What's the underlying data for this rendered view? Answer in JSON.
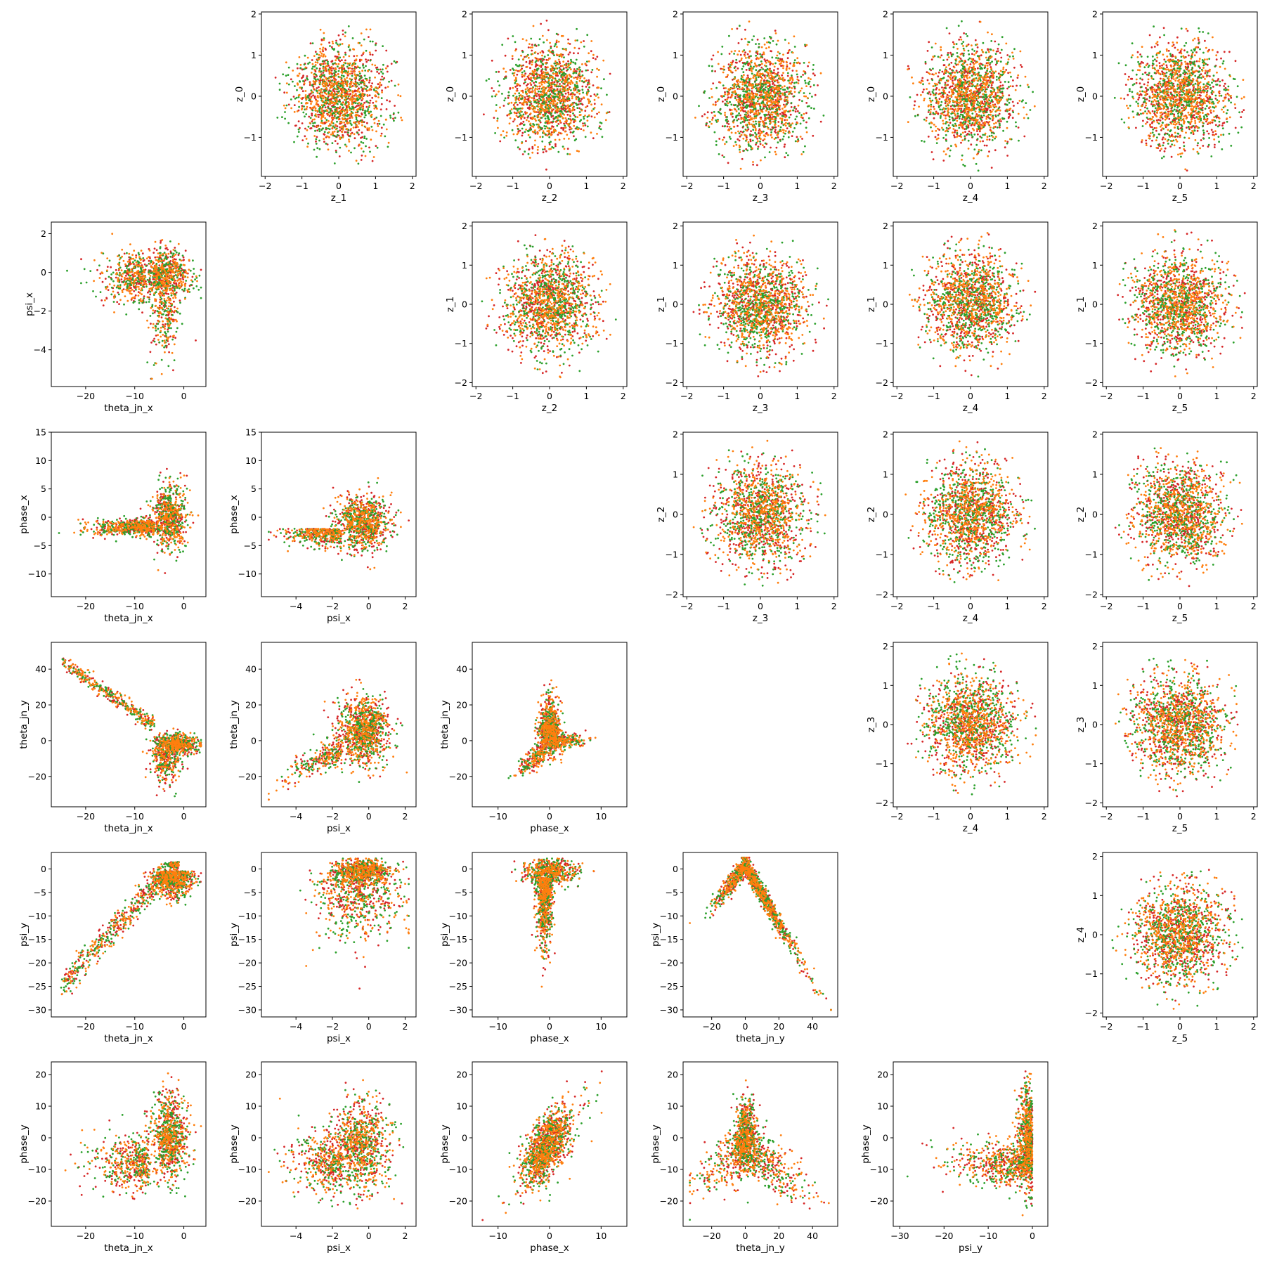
{
  "figure": {
    "layout": "pair-grid",
    "rows": 6,
    "cols": 6
  },
  "colors": {
    "red": "#d62728",
    "green": "#2ca02c",
    "orange": "#ff7f0e"
  },
  "chart_data": [
    {
      "type": "scatter",
      "row": 0,
      "col": 1,
      "xlabel": "z_1",
      "ylabel": "z_0",
      "xlim": [
        -2.1,
        2.1
      ],
      "ylim": [
        -1.95,
        2.05
      ],
      "xticks": [
        -2,
        -1,
        0,
        1,
        2
      ],
      "yticks": [
        -1,
        0,
        1,
        2
      ],
      "shape": "disk",
      "xspread": 1.85,
      "yspread": 1.85
    },
    {
      "type": "scatter",
      "row": 0,
      "col": 2,
      "xlabel": "z_2",
      "ylabel": "z_0",
      "xlim": [
        -2.1,
        2.1
      ],
      "ylim": [
        -1.95,
        2.05
      ],
      "xticks": [
        -2,
        -1,
        0,
        1,
        2
      ],
      "yticks": [
        -1,
        0,
        1,
        2
      ],
      "shape": "disk",
      "xspread": 1.85,
      "yspread": 1.85
    },
    {
      "type": "scatter",
      "row": 0,
      "col": 3,
      "xlabel": "z_3",
      "ylabel": "z_0",
      "xlim": [
        -2.1,
        2.1
      ],
      "ylim": [
        -1.95,
        2.05
      ],
      "xticks": [
        -2,
        -1,
        0,
        1,
        2
      ],
      "yticks": [
        -1,
        0,
        1,
        2
      ],
      "shape": "disk",
      "xspread": 1.85,
      "yspread": 1.85
    },
    {
      "type": "scatter",
      "row": 0,
      "col": 4,
      "xlabel": "z_4",
      "ylabel": "z_0",
      "xlim": [
        -2.1,
        2.1
      ],
      "ylim": [
        -1.95,
        2.05
      ],
      "xticks": [
        -2,
        -1,
        0,
        1,
        2
      ],
      "yticks": [
        -1,
        0,
        1,
        2
      ],
      "shape": "disk",
      "xspread": 1.85,
      "yspread": 1.85
    },
    {
      "type": "scatter",
      "row": 0,
      "col": 5,
      "xlabel": "z_5",
      "ylabel": "z_0",
      "xlim": [
        -2.1,
        2.1
      ],
      "ylim": [
        -1.95,
        2.05
      ],
      "xticks": [
        -2,
        -1,
        0,
        1,
        2
      ],
      "yticks": [
        -1,
        0,
        1,
        2
      ],
      "shape": "disk",
      "xspread": 1.85,
      "yspread": 1.85
    },
    {
      "type": "scatter",
      "row": 1,
      "col": 0,
      "xlabel": "theta_jn_x",
      "ylabel": "psi_x",
      "xlim": [
        -27,
        4.5
      ],
      "ylim": [
        -5.9,
        2.6
      ],
      "xticks": [
        -20,
        -10,
        0
      ],
      "yticks": [
        -4,
        -2,
        0,
        2
      ],
      "shape": "thetax_psix"
    },
    {
      "type": "scatter",
      "row": 1,
      "col": 2,
      "xlabel": "z_2",
      "ylabel": "z_1",
      "xlim": [
        -2.1,
        2.1
      ],
      "ylim": [
        -2.1,
        2.1
      ],
      "xticks": [
        -2,
        -1,
        0,
        1,
        2
      ],
      "yticks": [
        -2,
        -1,
        0,
        1,
        2
      ],
      "shape": "disk",
      "xspread": 1.85,
      "yspread": 1.9
    },
    {
      "type": "scatter",
      "row": 1,
      "col": 3,
      "xlabel": "z_3",
      "ylabel": "z_1",
      "xlim": [
        -2.1,
        2.1
      ],
      "ylim": [
        -2.1,
        2.1
      ],
      "xticks": [
        -2,
        -1,
        0,
        1,
        2
      ],
      "yticks": [
        -2,
        -1,
        0,
        1,
        2
      ],
      "shape": "disk",
      "xspread": 1.85,
      "yspread": 1.9
    },
    {
      "type": "scatter",
      "row": 1,
      "col": 4,
      "xlabel": "z_4",
      "ylabel": "z_1",
      "xlim": [
        -2.1,
        2.1
      ],
      "ylim": [
        -2.1,
        2.1
      ],
      "xticks": [
        -2,
        -1,
        0,
        1,
        2
      ],
      "yticks": [
        -2,
        -1,
        0,
        1,
        2
      ],
      "shape": "disk",
      "xspread": 1.85,
      "yspread": 1.9
    },
    {
      "type": "scatter",
      "row": 1,
      "col": 5,
      "xlabel": "z_5",
      "ylabel": "z_1",
      "xlim": [
        -2.1,
        2.1
      ],
      "ylim": [
        -2.1,
        2.1
      ],
      "xticks": [
        -2,
        -1,
        0,
        1,
        2
      ],
      "yticks": [
        -2,
        -1,
        0,
        1,
        2
      ],
      "shape": "disk",
      "xspread": 1.85,
      "yspread": 1.9
    },
    {
      "type": "scatter",
      "row": 2,
      "col": 0,
      "xlabel": "theta_jn_x",
      "ylabel": "phase_x",
      "xlim": [
        -27,
        4.5
      ],
      "ylim": [
        -14,
        15
      ],
      "xticks": [
        -20,
        -10,
        0
      ],
      "yticks": [
        -10,
        -5,
        0,
        5,
        10,
        15
      ],
      "shape": "thetax_phasex"
    },
    {
      "type": "scatter",
      "row": 2,
      "col": 1,
      "xlabel": "psi_x",
      "ylabel": "phase_x",
      "xlim": [
        -5.9,
        2.6
      ],
      "ylim": [
        -14,
        15
      ],
      "xticks": [
        -4,
        -2,
        0,
        2
      ],
      "yticks": [
        -10,
        -5,
        0,
        5,
        10,
        15
      ],
      "shape": "psix_phasex"
    },
    {
      "type": "scatter",
      "row": 2,
      "col": 3,
      "xlabel": "z_3",
      "ylabel": "z_2",
      "xlim": [
        -2.1,
        2.1
      ],
      "ylim": [
        -2.05,
        2.05
      ],
      "xticks": [
        -2,
        -1,
        0,
        1,
        2
      ],
      "yticks": [
        -2,
        -1,
        0,
        1,
        2
      ],
      "shape": "disk",
      "xspread": 1.85,
      "yspread": 1.85
    },
    {
      "type": "scatter",
      "row": 2,
      "col": 4,
      "xlabel": "z_4",
      "ylabel": "z_2",
      "xlim": [
        -2.1,
        2.1
      ],
      "ylim": [
        -2.05,
        2.05
      ],
      "xticks": [
        -2,
        -1,
        0,
        1,
        2
      ],
      "yticks": [
        -2,
        -1,
        0,
        1,
        2
      ],
      "shape": "disk",
      "xspread": 1.85,
      "yspread": 1.85
    },
    {
      "type": "scatter",
      "row": 2,
      "col": 5,
      "xlabel": "z_5",
      "ylabel": "z_2",
      "xlim": [
        -2.1,
        2.1
      ],
      "ylim": [
        -2.05,
        2.05
      ],
      "xticks": [
        -2,
        -1,
        0,
        1,
        2
      ],
      "yticks": [
        -2,
        -1,
        0,
        1,
        2
      ],
      "shape": "disk",
      "xspread": 1.85,
      "yspread": 1.85
    },
    {
      "type": "scatter",
      "row": 3,
      "col": 0,
      "xlabel": "theta_jn_x",
      "ylabel": "theta_jn_y",
      "xlim": [
        -27,
        4.5
      ],
      "ylim": [
        -37,
        55
      ],
      "xticks": [
        -20,
        -10,
        0
      ],
      "yticks": [
        -20,
        0,
        20,
        40
      ],
      "shape": "thetax_thetay"
    },
    {
      "type": "scatter",
      "row": 3,
      "col": 1,
      "xlabel": "psi_x",
      "ylabel": "theta_jn_y",
      "xlim": [
        -5.9,
        2.6
      ],
      "ylim": [
        -37,
        55
      ],
      "xticks": [
        -4,
        -2,
        0,
        2
      ],
      "yticks": [
        -20,
        0,
        20,
        40
      ],
      "shape": "psix_thetay"
    },
    {
      "type": "scatter",
      "row": 3,
      "col": 2,
      "xlabel": "phase_x",
      "ylabel": "theta_jn_y",
      "xlim": [
        -15,
        15
      ],
      "ylim": [
        -37,
        55
      ],
      "xticks": [
        -10,
        0,
        10
      ],
      "yticks": [
        -20,
        0,
        20,
        40
      ],
      "shape": "phasex_thetay"
    },
    {
      "type": "scatter",
      "row": 3,
      "col": 4,
      "xlabel": "z_4",
      "ylabel": "z_3",
      "xlim": [
        -2.1,
        2.1
      ],
      "ylim": [
        -2.1,
        2.1
      ],
      "xticks": [
        -2,
        -1,
        0,
        1,
        2
      ],
      "yticks": [
        -2,
        -1,
        0,
        1,
        2
      ],
      "shape": "disk",
      "xspread": 1.85,
      "yspread": 1.85
    },
    {
      "type": "scatter",
      "row": 3,
      "col": 5,
      "xlabel": "z_5",
      "ylabel": "z_3",
      "xlim": [
        -2.1,
        2.1
      ],
      "ylim": [
        -2.1,
        2.1
      ],
      "xticks": [
        -2,
        -1,
        0,
        1,
        2
      ],
      "yticks": [
        -2,
        -1,
        0,
        1,
        2
      ],
      "shape": "disk",
      "xspread": 1.85,
      "yspread": 1.85
    },
    {
      "type": "scatter",
      "row": 4,
      "col": 0,
      "xlabel": "theta_jn_x",
      "ylabel": "psi_y",
      "xlim": [
        -27,
        4.5
      ],
      "ylim": [
        -31.5,
        3.5
      ],
      "xticks": [
        -20,
        -10,
        0
      ],
      "yticks": [
        -30,
        -25,
        -20,
        -15,
        -10,
        -5,
        0
      ],
      "shape": "thetax_psiy"
    },
    {
      "type": "scatter",
      "row": 4,
      "col": 1,
      "xlabel": "psi_x",
      "ylabel": "psi_y",
      "xlim": [
        -5.9,
        2.6
      ],
      "ylim": [
        -31.5,
        3.5
      ],
      "xticks": [
        -4,
        -2,
        0,
        2
      ],
      "yticks": [
        -30,
        -25,
        -20,
        -15,
        -10,
        -5,
        0
      ],
      "shape": "psix_psiy"
    },
    {
      "type": "scatter",
      "row": 4,
      "col": 2,
      "xlabel": "phase_x",
      "ylabel": "psi_y",
      "xlim": [
        -15,
        15
      ],
      "ylim": [
        -31.5,
        3.5
      ],
      "xticks": [
        -10,
        0,
        10
      ],
      "yticks": [
        -30,
        -25,
        -20,
        -15,
        -10,
        -5,
        0
      ],
      "shape": "phasex_psiy"
    },
    {
      "type": "scatter",
      "row": 4,
      "col": 3,
      "xlabel": "theta_jn_y",
      "ylabel": "psi_y",
      "xlim": [
        -37,
        55
      ],
      "ylim": [
        -31.5,
        3.5
      ],
      "xticks": [
        -20,
        0,
        20,
        40
      ],
      "yticks": [
        -30,
        -25,
        -20,
        -15,
        -10,
        -5,
        0
      ],
      "shape": "thetay_psiy"
    },
    {
      "type": "scatter",
      "row": 4,
      "col": 5,
      "xlabel": "z_5",
      "ylabel": "z_4",
      "xlim": [
        -2.1,
        2.1
      ],
      "ylim": [
        -2.1,
        2.1
      ],
      "xticks": [
        -2,
        -1,
        0,
        1,
        2
      ],
      "yticks": [
        -2,
        -1,
        0,
        1,
        2
      ],
      "shape": "disk",
      "xspread": 1.85,
      "yspread": 1.9
    },
    {
      "type": "scatter",
      "row": 5,
      "col": 0,
      "xlabel": "theta_jn_x",
      "ylabel": "phase_y",
      "xlim": [
        -27,
        4.5
      ],
      "ylim": [
        -28,
        24
      ],
      "xticks": [
        -20,
        -10,
        0
      ],
      "yticks": [
        -20,
        -10,
        0,
        10,
        20
      ],
      "shape": "thetax_phasey"
    },
    {
      "type": "scatter",
      "row": 5,
      "col": 1,
      "xlabel": "psi_x",
      "ylabel": "phase_y",
      "xlim": [
        -5.9,
        2.6
      ],
      "ylim": [
        -28,
        24
      ],
      "xticks": [
        -4,
        -2,
        0,
        2
      ],
      "yticks": [
        -20,
        -10,
        0,
        10,
        20
      ],
      "shape": "psix_phasey"
    },
    {
      "type": "scatter",
      "row": 5,
      "col": 2,
      "xlabel": "phase_x",
      "ylabel": "phase_y",
      "xlim": [
        -15,
        15
      ],
      "ylim": [
        -28,
        24
      ],
      "xticks": [
        -10,
        0,
        10
      ],
      "yticks": [
        -20,
        -10,
        0,
        10,
        20
      ],
      "shape": "phasex_phasey"
    },
    {
      "type": "scatter",
      "row": 5,
      "col": 3,
      "xlabel": "theta_jn_y",
      "ylabel": "phase_y",
      "xlim": [
        -37,
        55
      ],
      "ylim": [
        -28,
        24
      ],
      "xticks": [
        -20,
        0,
        20,
        40
      ],
      "yticks": [
        -20,
        -10,
        0,
        10,
        20
      ],
      "shape": "thetay_phasey"
    },
    {
      "type": "scatter",
      "row": 5,
      "col": 4,
      "xlabel": "psi_y",
      "ylabel": "phase_y",
      "xlim": [
        -31.5,
        3.5
      ],
      "ylim": [
        -28,
        24
      ],
      "xticks": [
        -30,
        -20,
        -10,
        0
      ],
      "yticks": [
        -20,
        -10,
        0,
        10,
        20
      ],
      "shape": "psiy_phasey"
    }
  ]
}
